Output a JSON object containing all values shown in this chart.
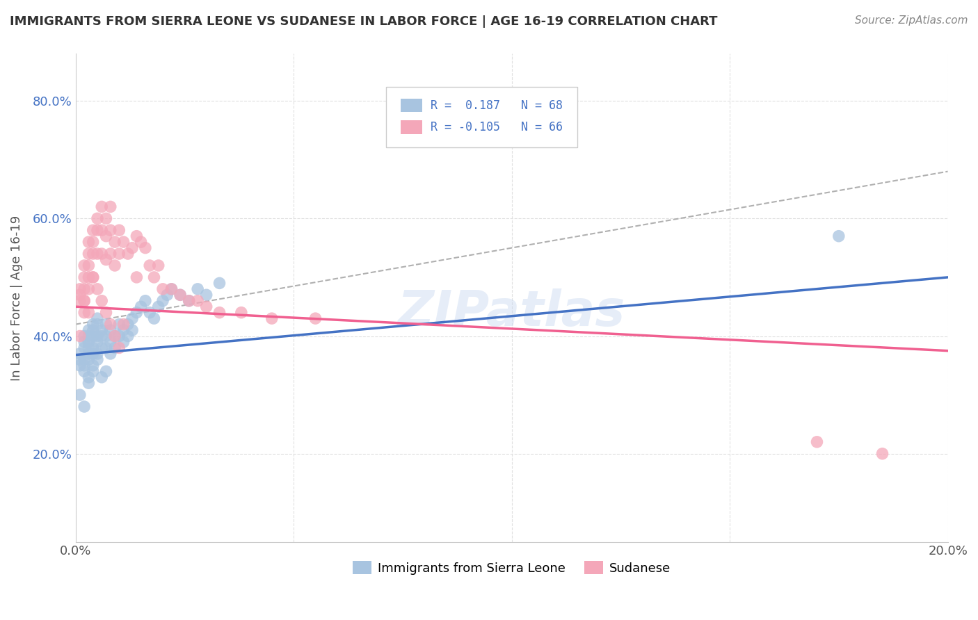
{
  "title": "IMMIGRANTS FROM SIERRA LEONE VS SUDANESE IN LABOR FORCE | AGE 16-19 CORRELATION CHART",
  "source": "Source: ZipAtlas.com",
  "ylabel": "In Labor Force | Age 16-19",
  "xlim": [
    0.0,
    0.2
  ],
  "ylim": [
    0.05,
    0.88
  ],
  "yticks": [
    0.2,
    0.4,
    0.6,
    0.8
  ],
  "yticklabels": [
    "20.0%",
    "40.0%",
    "60.0%",
    "80.0%"
  ],
  "xtick_positions": [
    0.0,
    0.05,
    0.1,
    0.15,
    0.2
  ],
  "xticklabels": [
    "0.0%",
    "",
    "",
    "",
    "20.0%"
  ],
  "legend_labels": [
    "Immigrants from Sierra Leone",
    "Sudanese"
  ],
  "sierra_leone_color": "#a8c4e0",
  "sudanese_color": "#f4a7b9",
  "sierra_leone_line_color": "#4472c4",
  "sudanese_line_color": "#f06090",
  "ref_line_color": "#b0b0b0",
  "legend_text_color": "#4472c4",
  "background_color": "#ffffff",
  "grid_color": "#e0e0e0",
  "sl_trend": [
    0.0,
    0.2,
    0.368,
    0.5
  ],
  "su_trend": [
    0.0,
    0.2,
    0.45,
    0.375
  ],
  "ref_line": [
    0.0,
    0.2,
    0.42,
    0.68
  ],
  "sierra_leone_x": [
    0.001,
    0.001,
    0.001,
    0.002,
    0.002,
    0.002,
    0.002,
    0.002,
    0.002,
    0.003,
    0.003,
    0.003,
    0.003,
    0.003,
    0.003,
    0.004,
    0.004,
    0.004,
    0.004,
    0.004,
    0.005,
    0.005,
    0.005,
    0.005,
    0.005,
    0.006,
    0.006,
    0.006,
    0.007,
    0.007,
    0.007,
    0.008,
    0.008,
    0.008,
    0.009,
    0.009,
    0.01,
    0.01,
    0.011,
    0.011,
    0.012,
    0.012,
    0.013,
    0.013,
    0.014,
    0.015,
    0.016,
    0.017,
    0.018,
    0.019,
    0.02,
    0.021,
    0.022,
    0.024,
    0.026,
    0.028,
    0.03,
    0.033,
    0.001,
    0.002,
    0.003,
    0.003,
    0.004,
    0.004,
    0.005,
    0.006,
    0.007,
    0.175
  ],
  "sierra_leone_y": [
    0.37,
    0.36,
    0.35,
    0.4,
    0.39,
    0.38,
    0.36,
    0.35,
    0.34,
    0.41,
    0.4,
    0.39,
    0.38,
    0.37,
    0.36,
    0.42,
    0.41,
    0.4,
    0.38,
    0.37,
    0.43,
    0.42,
    0.4,
    0.39,
    0.37,
    0.41,
    0.4,
    0.38,
    0.42,
    0.4,
    0.38,
    0.41,
    0.39,
    0.37,
    0.4,
    0.38,
    0.42,
    0.4,
    0.41,
    0.39,
    0.42,
    0.4,
    0.43,
    0.41,
    0.44,
    0.45,
    0.46,
    0.44,
    0.43,
    0.45,
    0.46,
    0.47,
    0.48,
    0.47,
    0.46,
    0.48,
    0.47,
    0.49,
    0.3,
    0.28,
    0.32,
    0.33,
    0.34,
    0.35,
    0.36,
    0.33,
    0.34,
    0.57
  ],
  "sudanese_x": [
    0.001,
    0.001,
    0.001,
    0.002,
    0.002,
    0.002,
    0.002,
    0.003,
    0.003,
    0.003,
    0.003,
    0.004,
    0.004,
    0.004,
    0.004,
    0.005,
    0.005,
    0.005,
    0.006,
    0.006,
    0.006,
    0.007,
    0.007,
    0.007,
    0.008,
    0.008,
    0.008,
    0.009,
    0.009,
    0.01,
    0.01,
    0.011,
    0.012,
    0.013,
    0.014,
    0.015,
    0.016,
    0.017,
    0.018,
    0.019,
    0.02,
    0.022,
    0.024,
    0.026,
    0.028,
    0.03,
    0.033,
    0.038,
    0.045,
    0.055,
    0.001,
    0.002,
    0.002,
    0.003,
    0.003,
    0.004,
    0.005,
    0.006,
    0.007,
    0.008,
    0.009,
    0.01,
    0.011,
    0.014,
    0.17,
    0.185
  ],
  "sudanese_y": [
    0.48,
    0.47,
    0.46,
    0.52,
    0.5,
    0.48,
    0.46,
    0.56,
    0.54,
    0.52,
    0.5,
    0.58,
    0.56,
    0.54,
    0.5,
    0.6,
    0.58,
    0.54,
    0.62,
    0.58,
    0.54,
    0.6,
    0.57,
    0.53,
    0.62,
    0.58,
    0.54,
    0.56,
    0.52,
    0.58,
    0.54,
    0.56,
    0.54,
    0.55,
    0.57,
    0.56,
    0.55,
    0.52,
    0.5,
    0.52,
    0.48,
    0.48,
    0.47,
    0.46,
    0.46,
    0.45,
    0.44,
    0.44,
    0.43,
    0.43,
    0.4,
    0.44,
    0.46,
    0.48,
    0.44,
    0.5,
    0.48,
    0.46,
    0.44,
    0.42,
    0.4,
    0.38,
    0.42,
    0.5,
    0.22,
    0.2
  ]
}
